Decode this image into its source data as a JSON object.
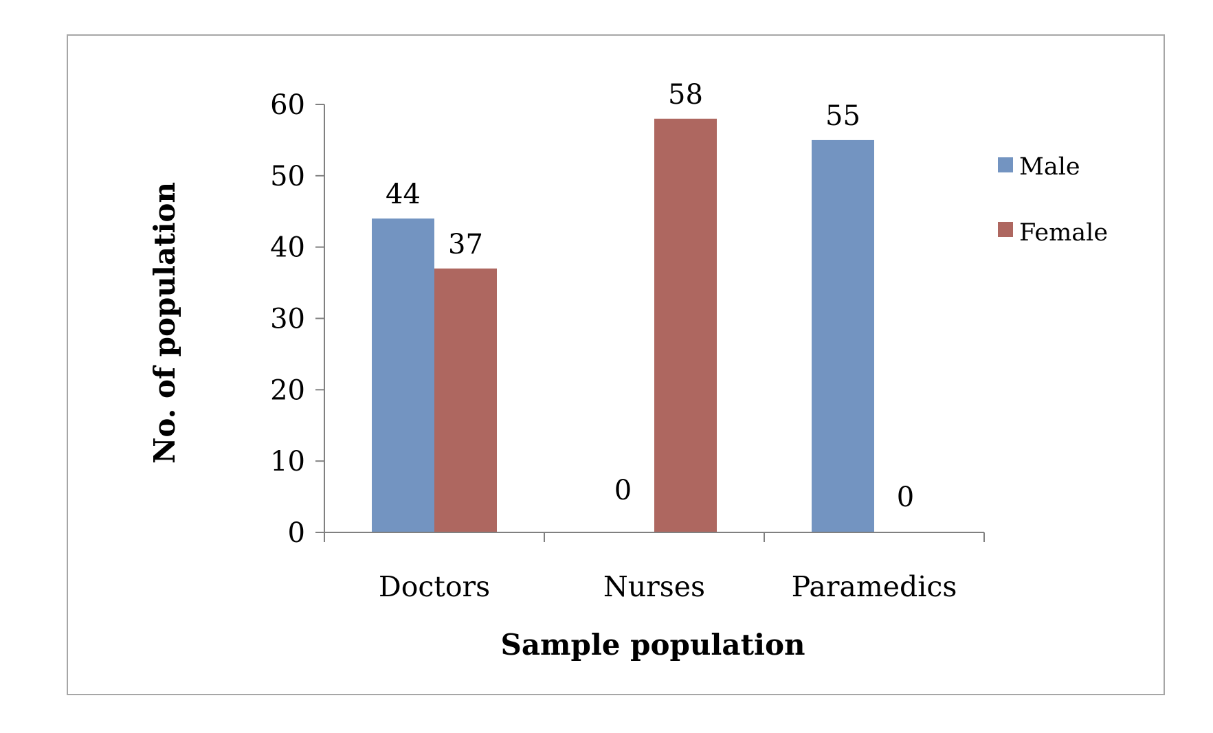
{
  "chart_data": {
    "type": "bar",
    "categories": [
      "Doctors",
      "Nurses",
      "Paramedics"
    ],
    "series": [
      {
        "name": "Male",
        "values": [
          44,
          0,
          55
        ],
        "color": "#7394c1"
      },
      {
        "name": "Female",
        "values": [
          37,
          58,
          0
        ],
        "color": "#ae6760"
      }
    ],
    "title": "",
    "xlabel": "Sample population",
    "ylabel": "No. of population",
    "ylim": [
      0,
      60
    ],
    "yticks": [
      "0",
      "10",
      "20",
      "30",
      "40",
      "50",
      "60"
    ],
    "data_labels": [
      [
        "44",
        "0",
        "55"
      ],
      [
        "37",
        "58",
        "0"
      ]
    ],
    "grid": false,
    "legend": "right"
  }
}
